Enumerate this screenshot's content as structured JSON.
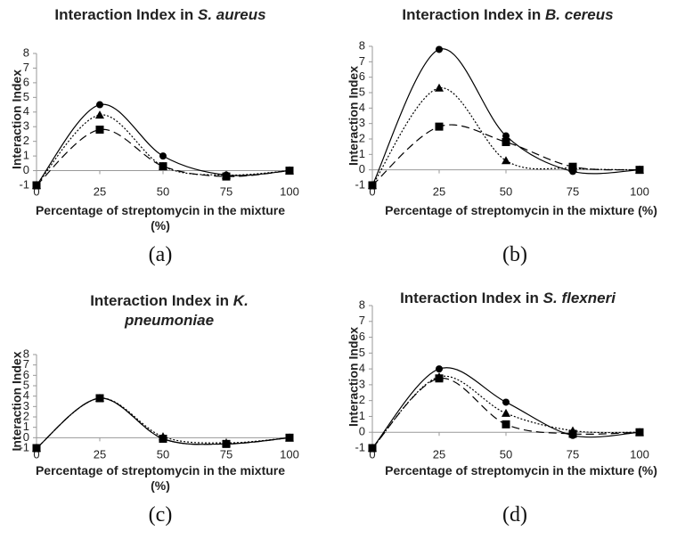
{
  "chart_data": [
    {
      "type": "line",
      "title": "Interaction Index in",
      "organism": "S. aureus",
      "xlabel": "Percentage of streptomycin in the mixture  (%)",
      "ylabel": "Interaction Index",
      "caption": "(a)",
      "x": [
        0,
        25,
        50,
        75,
        100
      ],
      "xlim": [
        0,
        100
      ],
      "xticks": [
        0,
        25,
        50,
        75,
        100
      ],
      "ylim": [
        -1,
        8
      ],
      "yticks": [
        -1,
        0,
        1,
        2,
        3,
        4,
        5,
        6,
        7,
        8
      ],
      "series": [
        {
          "color": "#000000",
          "marker": "circle",
          "line_style": "solid",
          "values": [
            -1,
            4.5,
            1.0,
            -0.3,
            0
          ]
        },
        {
          "color": "#000000",
          "marker": "triangle",
          "line_style": "dotted",
          "values": [
            -1,
            3.8,
            0.3,
            -0.3,
            0
          ]
        },
        {
          "color": "#000000",
          "marker": "square",
          "line_style": "dashed",
          "values": [
            -1,
            2.8,
            0.3,
            -0.4,
            0
          ]
        }
      ]
    },
    {
      "type": "line",
      "title": "Interaction Index in",
      "organism": "B. cereus",
      "xlabel": "Percentage of streptomycin in the mixture (%)",
      "ylabel": "Interaction Index",
      "caption": "(b)",
      "x": [
        0,
        25,
        50,
        75,
        100
      ],
      "xlim": [
        0,
        100
      ],
      "xticks": [
        0,
        25,
        50,
        75,
        100
      ],
      "ylim": [
        -1,
        8
      ],
      "yticks": [
        -1,
        0,
        1,
        2,
        3,
        4,
        5,
        6,
        7,
        8
      ],
      "series": [
        {
          "color": "#000000",
          "marker": "circle",
          "line_style": "solid",
          "values": [
            -1,
            7.8,
            2.2,
            -0.1,
            0
          ]
        },
        {
          "color": "#000000",
          "marker": "triangle",
          "line_style": "dotted",
          "values": [
            -1,
            5.3,
            0.6,
            0.1,
            0
          ]
        },
        {
          "color": "#000000",
          "marker": "square",
          "line_style": "dashed",
          "values": [
            -1,
            2.8,
            1.8,
            0.2,
            0
          ]
        }
      ]
    },
    {
      "type": "line",
      "title": "Interaction Index in",
      "organism": "K. pneumoniae",
      "xlabel": "Percentage of streptomycin in the mixture  (%)",
      "ylabel": "Interaction Index",
      "caption": "(c)",
      "x": [
        0,
        25,
        50,
        75,
        100
      ],
      "xlim": [
        0,
        100
      ],
      "xticks": [
        0,
        25,
        50,
        75,
        100
      ],
      "ylim": [
        -1,
        8
      ],
      "yticks": [
        -1,
        0,
        1,
        2,
        3,
        4,
        5,
        6,
        7,
        8
      ],
      "series": [
        {
          "color": "#000000",
          "marker": "circle",
          "line_style": "solid",
          "values": [
            -1,
            3.8,
            -0.1,
            -0.6,
            0
          ]
        },
        {
          "color": "#000000",
          "marker": "triangle",
          "line_style": "dotted",
          "values": [
            -1,
            3.8,
            0.1,
            -0.5,
            0
          ]
        },
        {
          "color": "#000000",
          "marker": "square",
          "line_style": "dashed",
          "values": [
            -1,
            3.8,
            -0.1,
            -0.6,
            0
          ]
        }
      ]
    },
    {
      "type": "line",
      "title": "Interaction Index in",
      "organism": "S. flexneri",
      "xlabel": "Percentage of streptomycin in the mixture (%)",
      "ylabel": "Interaction Index",
      "caption": "(d)",
      "x": [
        0,
        25,
        50,
        75,
        100
      ],
      "xlim": [
        0,
        100
      ],
      "xticks": [
        0,
        25,
        50,
        75,
        100
      ],
      "ylim": [
        -1,
        8
      ],
      "yticks": [
        -1,
        0,
        1,
        2,
        3,
        4,
        5,
        6,
        7,
        8
      ],
      "series": [
        {
          "color": "#000000",
          "marker": "circle",
          "line_style": "solid",
          "values": [
            -1,
            4.0,
            1.9,
            -0.2,
            0
          ]
        },
        {
          "color": "#000000",
          "marker": "triangle",
          "line_style": "dotted",
          "values": [
            -1,
            3.5,
            1.2,
            0.1,
            0
          ]
        },
        {
          "color": "#000000",
          "marker": "square",
          "line_style": "dashed",
          "values": [
            -1,
            3.4,
            0.5,
            -0.1,
            0
          ]
        }
      ]
    }
  ]
}
